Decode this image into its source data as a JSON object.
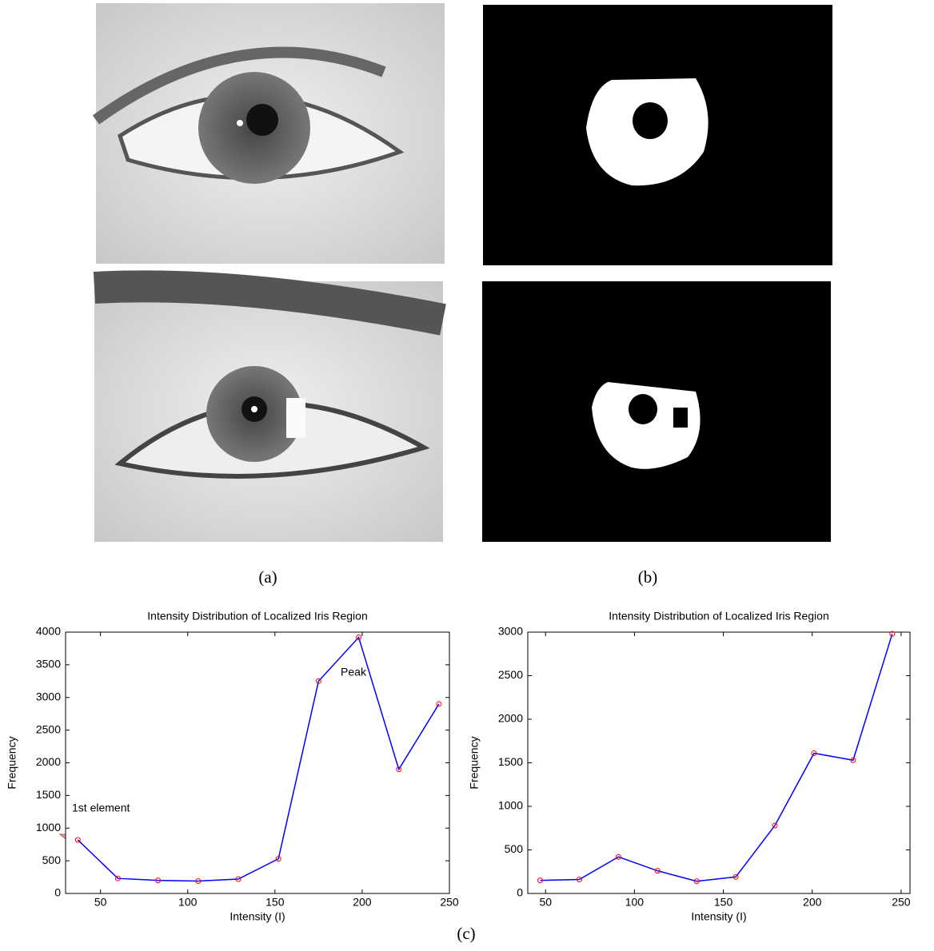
{
  "captions": [
    "(a)",
    "(b)",
    "(c)"
  ],
  "chart_data": [
    {
      "type": "line",
      "title": "Intensity Distribution of Localized Iris Region",
      "x_label": "Intensity (I)",
      "y_label": "Frequency",
      "x": [
        37,
        60,
        83,
        106,
        129,
        152,
        175,
        198,
        221,
        244
      ],
      "values": [
        820,
        230,
        200,
        190,
        220,
        530,
        3250,
        3920,
        1900,
        2900
      ],
      "color": "#0000ff",
      "marker_color": "#ff0000",
      "xlim": [
        30,
        250
      ],
      "xticks": [
        50,
        100,
        150,
        200,
        250
      ],
      "ylim": [
        0,
        4000
      ],
      "yticks": [
        0,
        500,
        1000,
        1500,
        2000,
        2500,
        3000,
        3500,
        4000
      ],
      "annotations": [
        "1st element",
        "Peak"
      ]
    },
    {
      "type": "line",
      "title": "Intensity Distribution of Localized Iris Region",
      "x_label": "Intensity (I)",
      "y_label": "Frequency",
      "x": [
        47,
        69,
        91,
        113,
        135,
        157,
        179,
        201,
        223,
        245
      ],
      "values": [
        150,
        160,
        420,
        260,
        140,
        190,
        780,
        1610,
        1530,
        2980
      ],
      "color": "#0000ff",
      "marker_color": "#ff0000",
      "xlim": [
        40,
        255
      ],
      "xticks": [
        50,
        100,
        150,
        200,
        250
      ],
      "ylim": [
        0,
        3000
      ],
      "yticks": [
        0,
        500,
        1000,
        1500,
        2000,
        2500,
        3000
      ]
    }
  ]
}
